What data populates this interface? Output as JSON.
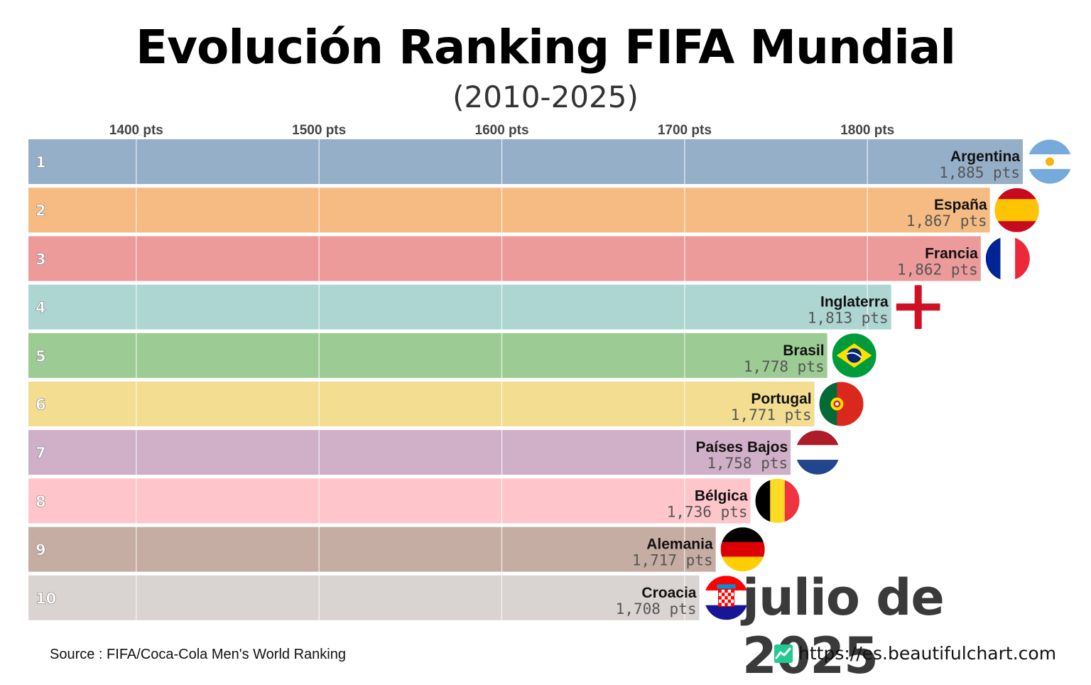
{
  "header": {
    "title": "Evolución Ranking FIFA Mundial",
    "subtitle": "(2010-2025)"
  },
  "chart_data": {
    "type": "bar",
    "orientation": "horizontal",
    "title": "Evolución Ranking FIFA Mundial",
    "subtitle": "(2010-2025)",
    "unit": "pts",
    "xlim": [
      1341,
      1892
    ],
    "ticks": [
      {
        "value": 1400,
        "label": "1400 pts"
      },
      {
        "value": 1500,
        "label": "1500 pts"
      },
      {
        "value": 1600,
        "label": "1600 pts"
      },
      {
        "value": 1700,
        "label": "1700 pts"
      },
      {
        "value": 1800,
        "label": "1800 pts"
      }
    ],
    "grid": true,
    "date_label": "julio de 2025",
    "categories": [
      "Argentina",
      "España",
      "Francia",
      "Inglaterra",
      "Brasil",
      "Portugal",
      "Países Bajos",
      "Bélgica",
      "Alemania",
      "Croacia"
    ],
    "ranks": [
      "1",
      "2",
      "3",
      "4",
      "5",
      "6",
      "7",
      "8",
      "9",
      "10"
    ],
    "values": [
      1885,
      1867,
      1862,
      1813,
      1778,
      1771,
      1758,
      1736,
      1717,
      1708
    ],
    "value_labels": [
      "1,885 pts",
      "1,867 pts",
      "1,862 pts",
      "1,813 pts",
      "1,778 pts",
      "1,771 pts",
      "1,758 pts",
      "1,736 pts",
      "1,717 pts",
      "1,708 pts"
    ],
    "colors": [
      "#95afc9",
      "#f5bb82",
      "#ec9a9a",
      "#add5d1",
      "#9ccb93",
      "#f3dd91",
      "#d0afc8",
      "#fec5cb",
      "#c6ada3",
      "#d9d4d2"
    ],
    "flags": [
      "flag-argentina",
      "flag-spain",
      "flag-france",
      "flag-england",
      "flag-brazil",
      "flag-portugal",
      "flag-netherlands",
      "flag-belgium",
      "flag-germany",
      "flag-croatia"
    ]
  },
  "footer": {
    "source": "Source : FIFA/Coca-Cola Men's World Ranking",
    "website": "https://es.beautifulchart.com",
    "logo_icon": "chart-logo-icon"
  }
}
